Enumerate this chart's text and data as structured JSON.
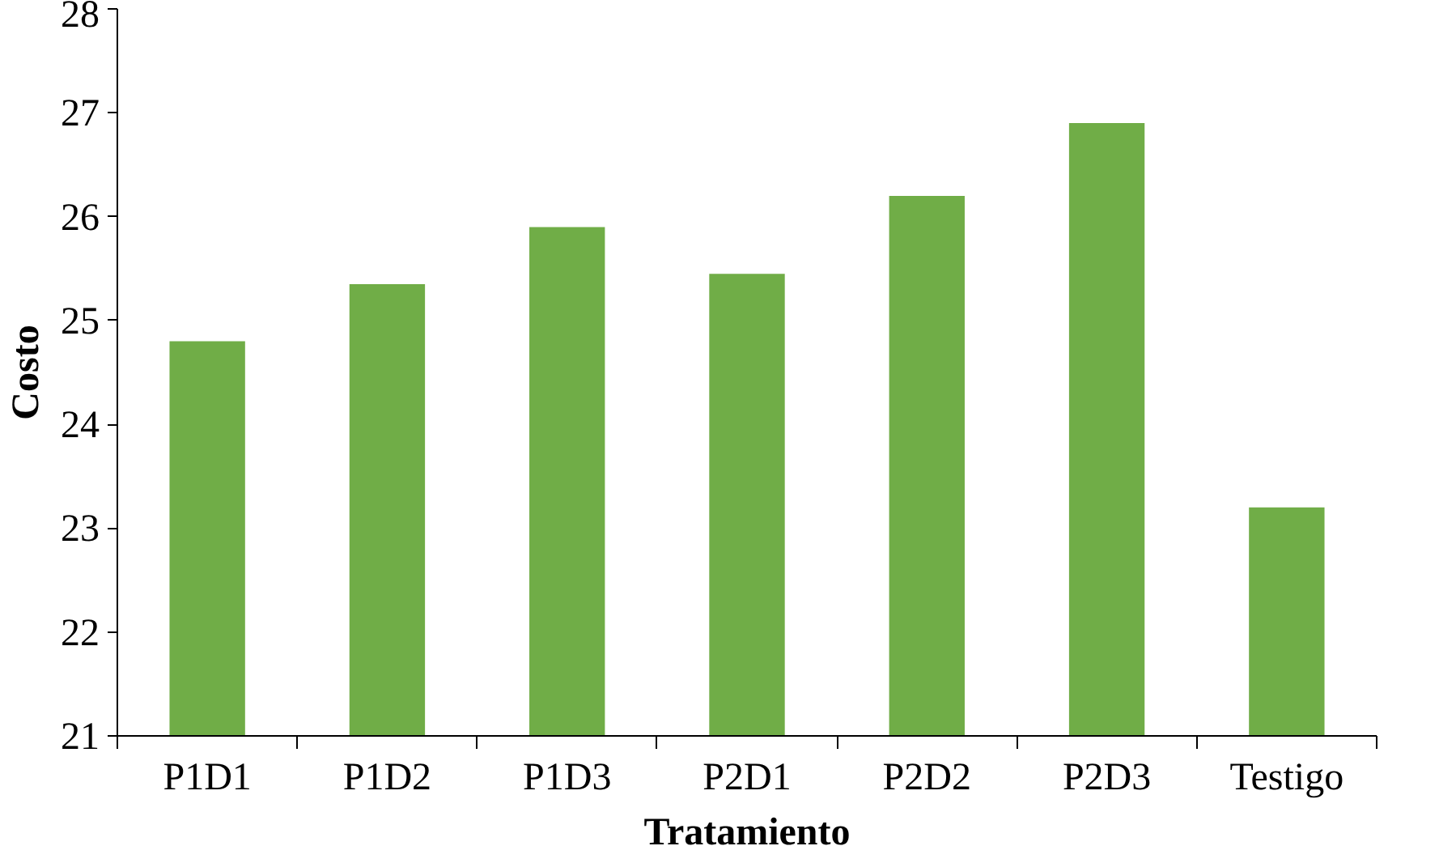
{
  "chart_data": {
    "type": "bar",
    "xlabel": "Tratamiento",
    "ylabel": "Costo",
    "categories": [
      "P1D1",
      "P1D2",
      "P1D3",
      "P2D1",
      "P2D2",
      "P2D3",
      "Testigo"
    ],
    "values": [
      24.8,
      25.35,
      25.9,
      25.45,
      26.2,
      26.9,
      23.2
    ],
    "color": "#70ad47",
    "ylim": [
      21,
      28
    ],
    "yticks": [
      21,
      22,
      23,
      24,
      25,
      26,
      27,
      28
    ],
    "grid": false
  }
}
